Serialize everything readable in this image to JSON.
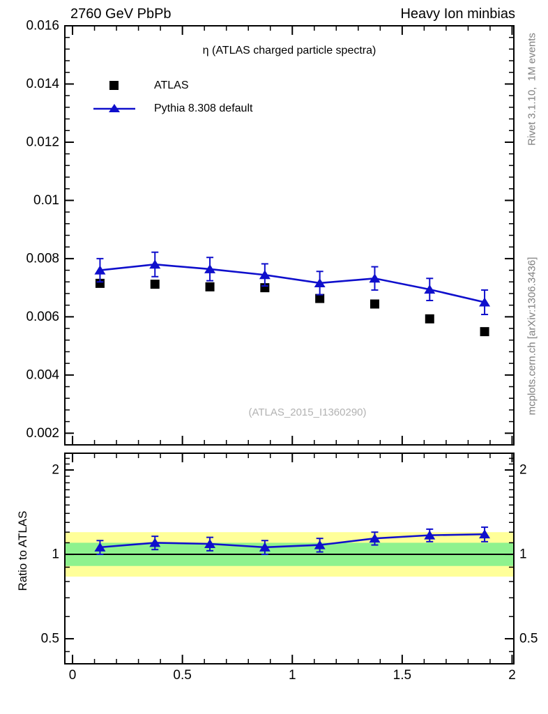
{
  "header": {
    "left": "2760 GeV PbPb",
    "right": "Heavy Ion minbias"
  },
  "title": "η (ATLAS charged particle spectra)",
  "watermark": "(ATLAS_2015_I1360290)",
  "side_notes": {
    "rivet": "Rivet 3.1.10,  1M events",
    "mcplots": "mcplots.cern.ch [arXiv:1306.3436]"
  },
  "ratio_axis_title": "Ratio to ATLAS",
  "legend": [
    {
      "label": "ATLAS",
      "marker": "square",
      "color": "#000000"
    },
    {
      "label": "Pythia 8.308 default",
      "marker": "triangle-line",
      "color": "#0f0fcc"
    }
  ],
  "colors": {
    "pythia_blue": "#0f0fcc",
    "atlas_black": "#000000",
    "band_green": "#8ef28e",
    "band_yellow": "#ffff99",
    "gray_text": "#808080",
    "watermark_gray": "#b2b2b2"
  },
  "chart_data": [
    {
      "type": "scatter",
      "panel": "main",
      "title": "η (ATLAS charged particle spectra)",
      "xlabel": "",
      "ylabel": "",
      "x": [
        0.125,
        0.375,
        0.625,
        0.875,
        1.125,
        1.375,
        1.625,
        1.875
      ],
      "series": [
        {
          "name": "ATLAS",
          "marker": "square",
          "color": "#000000",
          "line": false,
          "values": [
            0.00715,
            0.00712,
            0.00703,
            0.007,
            0.00663,
            0.00644,
            0.00593,
            0.00549
          ],
          "errors": [
            0,
            0,
            0,
            0,
            0,
            0,
            0,
            0
          ]
        },
        {
          "name": "Pythia 8.308 default",
          "marker": "triangle",
          "color": "#0f0fcc",
          "line": true,
          "values": [
            0.0076,
            0.0078,
            0.00764,
            0.00744,
            0.00716,
            0.00732,
            0.00694,
            0.0065
          ],
          "errors": [
            0.0004,
            0.00042,
            0.0004,
            0.00038,
            0.0004,
            0.0004,
            0.00038,
            0.00042
          ]
        }
      ],
      "xlim": [
        -0.035,
        2.008
      ],
      "ylim": [
        0.0016,
        0.016
      ],
      "yscale": "linear",
      "grid": false,
      "legend_position": "top-left",
      "xticks": {
        "values": [
          0,
          0.5,
          1,
          1.5,
          2
        ],
        "labels": []
      },
      "x_minor_step": 0.1,
      "yticks": {
        "values": [
          0.016,
          0.014,
          0.012,
          0.01,
          0.008,
          0.006,
          0.004,
          0.002
        ],
        "labels": [
          "0.016",
          "0.014",
          "0.012",
          "0.01",
          "0.008",
          "0.006",
          "0.004",
          "0.002"
        ]
      },
      "y_minor_step": 0.0004
    },
    {
      "type": "line",
      "panel": "ratio",
      "ylabel": "Ratio to ATLAS",
      "x": [
        0.125,
        0.375,
        0.625,
        0.875,
        1.125,
        1.375,
        1.625,
        1.875
      ],
      "series": [
        {
          "name": "Pythia 8.308 default / ATLAS",
          "marker": "triangle",
          "color": "#0f0fcc",
          "line": true,
          "values": [
            1.06,
            1.1,
            1.09,
            1.06,
            1.08,
            1.14,
            1.17,
            1.18
          ],
          "errors": [
            0.06,
            0.06,
            0.06,
            0.06,
            0.06,
            0.06,
            0.06,
            0.07
          ]
        }
      ],
      "bands": [
        {
          "name": "uncertainty-20pct",
          "color": "#ffff99",
          "lo": 0.833,
          "hi": 1.2
        },
        {
          "name": "uncertainty-10pct",
          "color": "#8ef28e",
          "lo": 0.909,
          "hi": 1.1
        }
      ],
      "reference_line": 1,
      "xlim": [
        -0.035,
        2.008
      ],
      "ylim": [
        0.407,
        2.295
      ],
      "yscale": "log",
      "xticks": {
        "values": [
          0,
          0.5,
          1,
          1.5,
          2
        ],
        "labels": [
          "0",
          "0.5",
          "1",
          "1.5",
          "2"
        ]
      },
      "x_minor_step": 0.1,
      "yticks": {
        "values": [
          2,
          1,
          0.5
        ],
        "labels": [
          "2",
          "1",
          "0.5"
        ]
      },
      "y_minor_ticks": [
        0.45,
        0.6,
        0.7,
        0.8,
        0.9,
        1.1,
        1.2,
        1.3,
        1.4,
        1.5,
        1.6,
        1.7,
        1.8,
        1.9,
        2.1,
        2.2
      ]
    }
  ]
}
